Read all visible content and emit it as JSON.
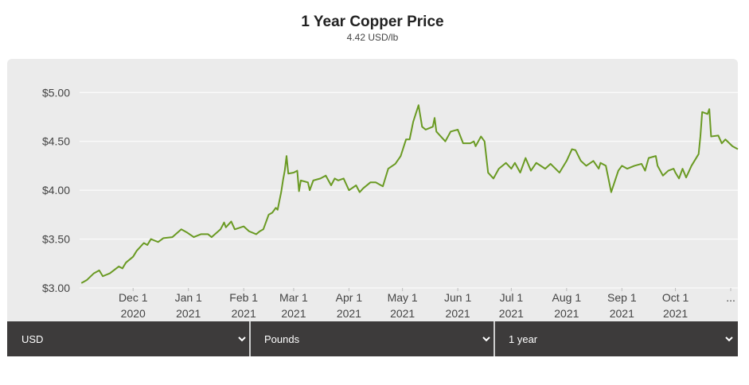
{
  "chart_data": {
    "type": "line",
    "title": "1 Year Copper Price",
    "subtitle": "4.42 USD/lb",
    "color": "#6a9a23",
    "grid": true,
    "xlim": [
      "2020-11-01",
      "2021-11-05"
    ],
    "xticks": [
      {
        "value": "2020-12-01",
        "label": [
          "Dec 1",
          "2020"
        ]
      },
      {
        "value": "2021-01-01",
        "label": [
          "Jan 1",
          "2021"
        ]
      },
      {
        "value": "2021-02-01",
        "label": [
          "Feb 1",
          "2021"
        ]
      },
      {
        "value": "2021-03-01",
        "label": [
          "Mar 1",
          "2021"
        ]
      },
      {
        "value": "2021-04-01",
        "label": [
          "Apr 1",
          "2021"
        ]
      },
      {
        "value": "2021-05-01",
        "label": [
          "May 1",
          "2021"
        ]
      },
      {
        "value": "2021-06-01",
        "label": [
          "Jun 1",
          "2021"
        ]
      },
      {
        "value": "2021-07-01",
        "label": [
          "Jul 1",
          "2021"
        ]
      },
      {
        "value": "2021-08-01",
        "label": [
          "Aug 1",
          "2021"
        ]
      },
      {
        "value": "2021-09-01",
        "label": [
          "Sep 1",
          "2021"
        ]
      },
      {
        "value": "2021-10-01",
        "label": [
          "Oct 1",
          "2021"
        ]
      },
      {
        "value": "2021-11-01",
        "label": [
          "..."
        ]
      }
    ],
    "ylim": [
      3.0,
      5.1
    ],
    "yticks": [
      {
        "value": 3,
        "label": "$3.00"
      },
      {
        "value": 3.5,
        "label": "$3.50"
      },
      {
        "value": 4,
        "label": "$4.00"
      },
      {
        "value": 4.5,
        "label": "$4.50"
      },
      {
        "value": 5,
        "label": "$5.00"
      }
    ],
    "x": [
      "2020-11-02",
      "2020-11-05",
      "2020-11-09",
      "2020-11-12",
      "2020-11-14",
      "2020-11-18",
      "2020-11-23",
      "2020-11-25",
      "2020-11-27",
      "2020-12-01",
      "2020-12-03",
      "2020-12-07",
      "2020-12-09",
      "2020-12-11",
      "2020-12-15",
      "2020-12-18",
      "2020-12-23",
      "2020-12-28",
      "2020-12-31",
      "2021-01-04",
      "2021-01-08",
      "2021-01-12",
      "2021-01-14",
      "2021-01-19",
      "2021-01-21",
      "2021-01-22",
      "2021-01-25",
      "2021-01-27",
      "2021-02-01",
      "2021-02-04",
      "2021-02-08",
      "2021-02-10",
      "2021-02-12",
      "2021-02-15",
      "2021-02-17",
      "2021-02-19",
      "2021-02-20",
      "2021-02-22",
      "2021-02-23",
      "2021-02-24",
      "2021-02-25",
      "2021-02-26",
      "2021-03-01",
      "2021-03-03",
      "2021-03-04",
      "2021-03-05",
      "2021-03-09",
      "2021-03-10",
      "2021-03-12",
      "2021-03-16",
      "2021-03-19",
      "2021-03-22",
      "2021-03-24",
      "2021-03-26",
      "2021-03-29",
      "2021-04-01",
      "2021-04-05",
      "2021-04-07",
      "2021-04-09",
      "2021-04-13",
      "2021-04-16",
      "2021-04-20",
      "2021-04-23",
      "2021-04-27",
      "2021-04-30",
      "2021-05-03",
      "2021-05-05",
      "2021-05-07",
      "2021-05-10",
      "2021-05-12",
      "2021-05-14",
      "2021-05-18",
      "2021-05-19",
      "2021-05-20",
      "2021-05-25",
      "2021-05-28",
      "2021-06-01",
      "2021-06-04",
      "2021-06-08",
      "2021-06-10",
      "2021-06-11",
      "2021-06-14",
      "2021-06-16",
      "2021-06-18",
      "2021-06-21",
      "2021-06-24",
      "2021-06-28",
      "2021-07-01",
      "2021-07-03",
      "2021-07-06",
      "2021-07-09",
      "2021-07-12",
      "2021-07-15",
      "2021-07-20",
      "2021-07-23",
      "2021-07-28",
      "2021-08-01",
      "2021-08-04",
      "2021-08-06",
      "2021-08-09",
      "2021-08-12",
      "2021-08-16",
      "2021-08-19",
      "2021-08-20",
      "2021-08-23",
      "2021-08-26",
      "2021-08-30",
      "2021-09-01",
      "2021-09-04",
      "2021-09-08",
      "2021-09-12",
      "2021-09-14",
      "2021-09-16",
      "2021-09-20",
      "2021-09-21",
      "2021-09-24",
      "2021-09-27",
      "2021-09-30",
      "2021-10-01",
      "2021-10-03",
      "2021-10-05",
      "2021-10-07",
      "2021-10-10",
      "2021-10-14",
      "2021-10-15",
      "2021-10-16",
      "2021-10-19",
      "2021-10-20",
      "2021-10-21",
      "2021-10-25",
      "2021-10-27",
      "2021-10-29",
      "2021-11-02",
      "2021-11-05"
    ],
    "series": [
      {
        "name": "Copper",
        "values": [
          3.05,
          3.08,
          3.15,
          3.18,
          3.12,
          3.15,
          3.22,
          3.2,
          3.26,
          3.32,
          3.38,
          3.46,
          3.44,
          3.5,
          3.47,
          3.51,
          3.52,
          3.6,
          3.57,
          3.52,
          3.55,
          3.55,
          3.52,
          3.6,
          3.67,
          3.62,
          3.68,
          3.6,
          3.63,
          3.58,
          3.55,
          3.58,
          3.6,
          3.75,
          3.77,
          3.82,
          3.8,
          3.98,
          4.1,
          4.2,
          4.35,
          4.17,
          4.18,
          4.2,
          3.99,
          4.1,
          4.08,
          4.0,
          4.1,
          4.12,
          4.15,
          4.05,
          4.12,
          4.1,
          4.12,
          4.0,
          4.05,
          3.98,
          4.02,
          4.08,
          4.08,
          4.04,
          4.22,
          4.27,
          4.35,
          4.52,
          4.52,
          4.7,
          4.87,
          4.65,
          4.62,
          4.65,
          4.74,
          4.6,
          4.5,
          4.6,
          4.62,
          4.48,
          4.48,
          4.5,
          4.45,
          4.55,
          4.5,
          4.18,
          4.12,
          4.22,
          4.28,
          4.22,
          4.28,
          4.18,
          4.33,
          4.2,
          4.28,
          4.22,
          4.27,
          4.18,
          4.3,
          4.42,
          4.41,
          4.3,
          4.25,
          4.3,
          4.22,
          4.28,
          4.25,
          3.98,
          4.2,
          4.25,
          4.22,
          4.25,
          4.27,
          4.2,
          4.33,
          4.35,
          4.25,
          4.15,
          4.2,
          4.22,
          4.18,
          4.12,
          4.22,
          4.13,
          4.25,
          4.37,
          4.55,
          4.8,
          4.78,
          4.83,
          4.55,
          4.56,
          4.48,
          4.52,
          4.45,
          4.42
        ]
      }
    ]
  },
  "controls": [
    "USD",
    "Pounds",
    "1 year"
  ]
}
